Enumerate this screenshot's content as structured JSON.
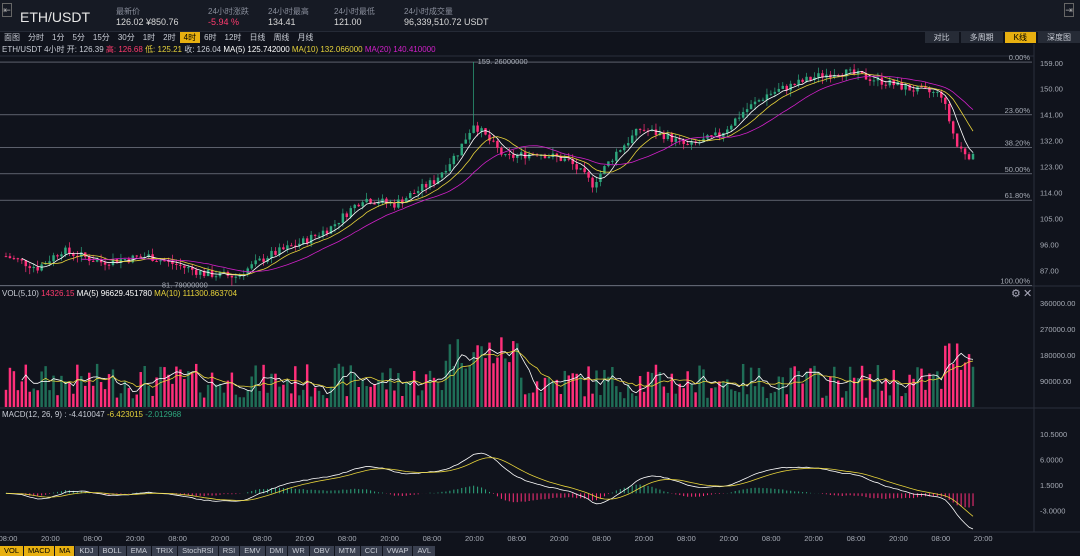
{
  "symbol": "ETH/USDT",
  "stats": [
    {
      "label": "最新价",
      "value": "126.02 ¥850.76",
      "neg": false
    },
    {
      "label": "24小时涨跌",
      "value": "-5.94 %",
      "neg": true
    },
    {
      "label": "24小时最高",
      "value": "134.41",
      "neg": false
    },
    {
      "label": "24小时最低",
      "value": "121.00",
      "neg": false
    },
    {
      "label": "24小时成交量",
      "value": "96,339,510.72 USDT",
      "neg": false
    }
  ],
  "timeframes": [
    "面图",
    "分时",
    "1分",
    "5分",
    "15分",
    "30分",
    "1时",
    "2时",
    "4时",
    "6时",
    "12时",
    "日线",
    "周线",
    "月线"
  ],
  "active_timeframe": "4时",
  "view_buttons": [
    "对比",
    "多周期",
    "K线",
    "深度图"
  ],
  "active_view": "K线",
  "legend_main": {
    "prefix": "ETH/USDT 4小时 开: 126.39",
    "high": "高: 126.68",
    "low": "低: 125.21",
    "close": "收: 126.04",
    "ma5": "MA(5) 125.742000",
    "ma10": "MA(10) 132.066000",
    "ma20": "MA(20) 140.410000"
  },
  "price_axis": [
    "159.00",
    "150.00",
    "141.00",
    "132.00",
    "123.00",
    "114.00",
    "105.00",
    "96.00",
    "87.00"
  ],
  "fib_levels": [
    "0.00%",
    "23.60%",
    "38.20%",
    "50.00%",
    "61.80%",
    "100.00%"
  ],
  "annotations": {
    "high": "159. 26000000",
    "low": "81. 79000000"
  },
  "legend_vol": {
    "title": "VOL(5,10)",
    "v": "14326.15",
    "ma5": "MA(5) 96629.451780",
    "ma10": "MA(10) 111300.863704"
  },
  "vol_axis": [
    "360000.00",
    "270000.00",
    "180000.00",
    "90000.00"
  ],
  "legend_macd": {
    "title": "MACD(12, 26, 9) : -4.410047",
    "dea": "-6.423015",
    "hist": "-2.012968"
  },
  "macd_axis": [
    "10.5000",
    "6.0000",
    "1.5000",
    "-3.0000"
  ],
  "time_axis": [
    "08:00",
    "20:00",
    "08:00",
    "20:00",
    "08:00",
    "20:00",
    "08:00",
    "20:00",
    "08:00",
    "20:00",
    "08:00",
    "20:00",
    "08:00",
    "20:00",
    "08:00",
    "20:00",
    "08:00",
    "20:00",
    "08:00",
    "20:00",
    "08:00",
    "20:00",
    "08:00",
    "20:00"
  ],
  "indicator_tabs": [
    "VOL",
    "MACD",
    "MA",
    "KDJ",
    "BOLL",
    "EMA",
    "TRIX",
    "StochRSI",
    "RSI",
    "EMV",
    "DMI",
    "WR",
    "OBV",
    "MTM",
    "CCI",
    "VWAP",
    "AVL"
  ],
  "active_indicators": [
    "VOL",
    "MACD",
    "MA"
  ],
  "colors": {
    "up": "#2ea87e",
    "down": "#ff2f7a",
    "ma5": "#ffffff",
    "ma10": "#e6d23a",
    "ma20": "#d020c8",
    "accent": "#e8b010",
    "bg": "#10131c"
  },
  "icons": [
    "collapse-icon",
    "gear-icon",
    "close-icon"
  ]
}
